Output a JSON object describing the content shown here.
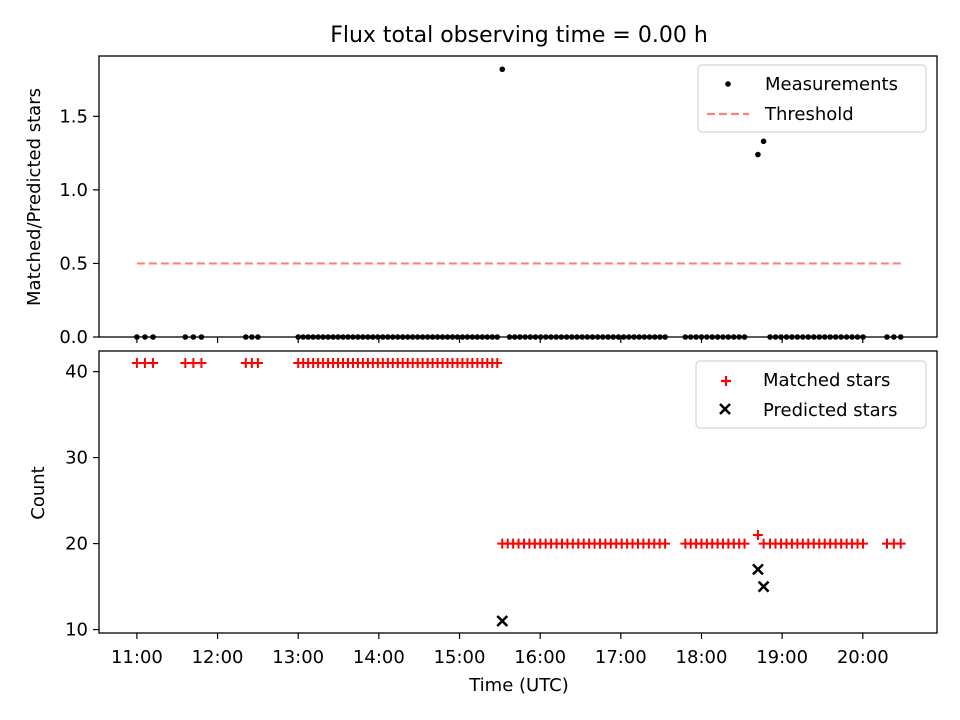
{
  "chart_data": [
    {
      "type": "scatter",
      "title": "Flux total observing time = 0.00 h",
      "xlabel": "",
      "ylabel": "Matched/Predicted stars",
      "xlim": [
        10.53,
        20.92
      ],
      "ylim": [
        0.0,
        1.91
      ],
      "yticks": [
        0.0,
        0.5,
        1.0,
        1.5
      ],
      "ytick_labels": [
        "0.0",
        "0.5",
        "1.0",
        "1.5"
      ],
      "legend_position": "top-right",
      "series": [
        {
          "name": "Measurements",
          "marker": "dot",
          "color": "#000000",
          "points": [
            [
              15.53,
              1.82
            ],
            [
              18.7,
              1.24
            ],
            [
              18.77,
              1.33
            ]
          ],
          "zero_segments": [
            {
              "start": 11.0,
              "end": 11.2,
              "step": 0.1
            },
            {
              "start": 11.6,
              "end": 11.8,
              "step": 0.1
            },
            {
              "start": 12.35,
              "end": 12.5,
              "step": 0.075
            },
            {
              "start": 13.0,
              "end": 15.47,
              "step": 0.0617
            },
            {
              "start": 15.62,
              "end": 17.55,
              "step": 0.0643
            },
            {
              "start": 17.8,
              "end": 18.6,
              "step": 0.0667
            },
            {
              "start": 18.85,
              "end": 20.07,
              "step": 0.0678
            },
            {
              "start": 20.3,
              "end": 20.47,
              "step": 0.085
            }
          ]
        },
        {
          "name": "Threshold",
          "style": "dashed",
          "color": "#ff7f7f",
          "x": [
            11.0,
            20.47
          ],
          "y": [
            0.5,
            0.5
          ]
        }
      ]
    },
    {
      "type": "scatter",
      "title": "",
      "xlabel": "Time (UTC)",
      "ylabel": "Count",
      "xlim": [
        10.53,
        20.92
      ],
      "ylim": [
        9.6,
        42.4
      ],
      "yticks": [
        10,
        20,
        30,
        40
      ],
      "ytick_labels": [
        "10",
        "20",
        "30",
        "40"
      ],
      "xticks": [
        11,
        12,
        13,
        14,
        15,
        16,
        17,
        18,
        19,
        20
      ],
      "xtick_labels": [
        "11:00",
        "12:00",
        "13:00",
        "14:00",
        "15:00",
        "16:00",
        "17:00",
        "18:00",
        "19:00",
        "20:00"
      ],
      "legend_position": "top-right",
      "series": [
        {
          "name": "Matched stars",
          "marker": "plus",
          "color": "#ff0000",
          "segments": [
            {
              "start": 11.0,
              "end": 11.2,
              "step": 0.1,
              "value": 41
            },
            {
              "start": 11.6,
              "end": 11.8,
              "step": 0.1,
              "value": 41
            },
            {
              "start": 12.35,
              "end": 12.5,
              "step": 0.075,
              "value": 41
            },
            {
              "start": 13.0,
              "end": 15.47,
              "step": 0.0617,
              "value": 41
            },
            {
              "start": 15.53,
              "end": 17.55,
              "step": 0.0673,
              "value": 20
            },
            {
              "start": 17.8,
              "end": 18.6,
              "step": 0.0667,
              "value": 20
            },
            {
              "start": 18.85,
              "end": 20.07,
              "step": 0.0678,
              "value": 20
            },
            {
              "start": 20.3,
              "end": 20.47,
              "step": 0.085,
              "value": 20
            }
          ],
          "points": [
            [
              18.7,
              21
            ],
            [
              18.77,
              20
            ]
          ]
        },
        {
          "name": "Predicted stars",
          "marker": "x",
          "color": "#000000",
          "points": [
            [
              15.53,
              11
            ],
            [
              18.7,
              17
            ],
            [
              18.77,
              15
            ]
          ]
        }
      ]
    }
  ]
}
